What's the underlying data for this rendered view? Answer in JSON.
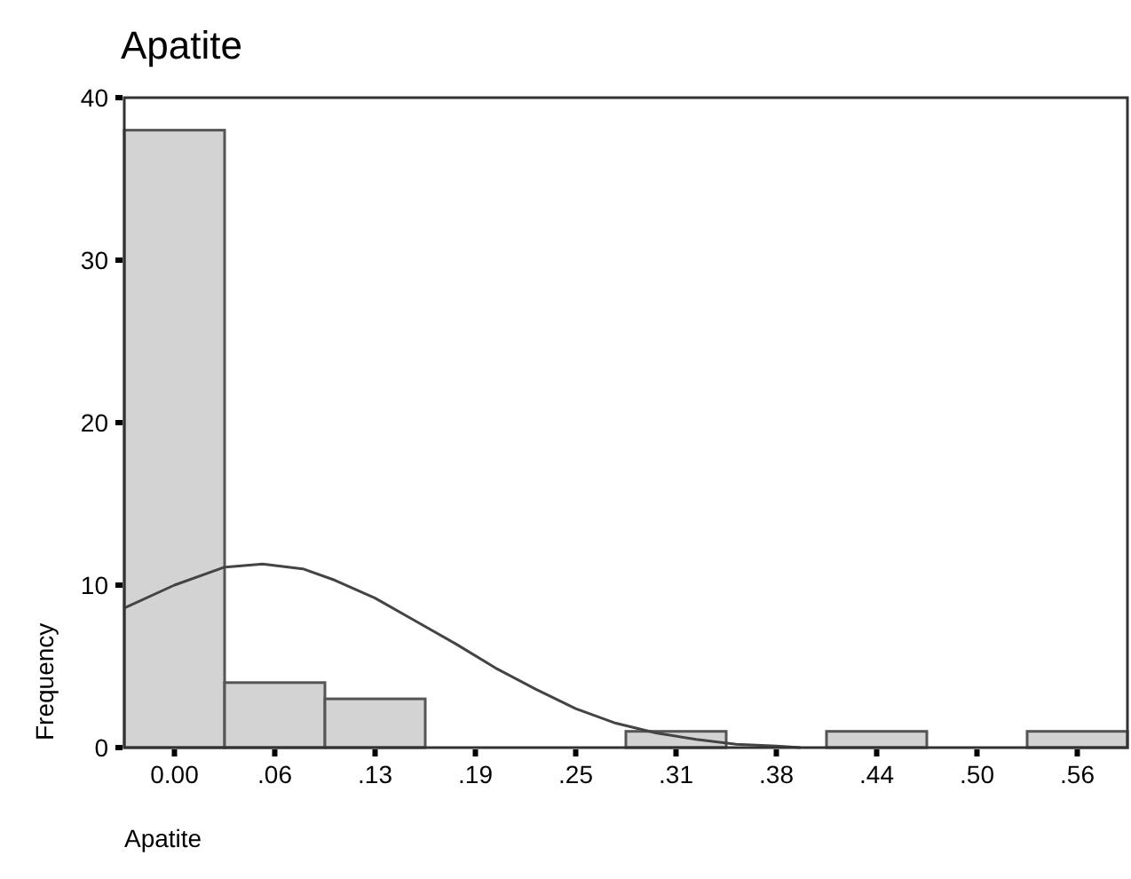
{
  "chart_data": {
    "type": "histogram",
    "title": "Apatite",
    "xlabel": "Apatite",
    "ylabel": "Frequency",
    "bins": [
      -0.03125,
      0.03125,
      0.09375,
      0.15625,
      0.21875,
      0.28125,
      0.34375,
      0.40625,
      0.46875,
      0.53125,
      0.59375
    ],
    "values": [
      38,
      4,
      3,
      0,
      0,
      1,
      0,
      1,
      0,
      1
    ],
    "color": "#d3d3d3",
    "series": [
      {
        "type": "line",
        "color": "#444444",
        "x": [
          -0.031,
          0,
          0.031,
          0.055,
          0.08,
          0.1,
          0.125,
          0.15,
          0.175,
          0.2,
          0.225,
          0.25,
          0.275,
          0.3,
          0.325,
          0.35,
          0.375,
          0.39
        ],
        "values": [
          8.6,
          10.0,
          11.1,
          11.3,
          11.0,
          10.3,
          9.2,
          7.8,
          6.4,
          4.9,
          3.6,
          2.4,
          1.5,
          0.9,
          0.5,
          0.2,
          0.1,
          0
        ]
      }
    ],
    "xlim": [
      -0.03125,
      0.59375
    ],
    "ylim": [
      0,
      40
    ],
    "xticks": [
      {
        "value": 0,
        "label": "0.00"
      },
      {
        "value": 0.0625,
        "label": ".06"
      },
      {
        "value": 0.125,
        "label": ".13"
      },
      {
        "value": 0.1875,
        "label": ".19"
      },
      {
        "value": 0.25,
        "label": ".25"
      },
      {
        "value": 0.3125,
        "label": ".31"
      },
      {
        "value": 0.375,
        "label": ".38"
      },
      {
        "value": 0.4375,
        "label": ".44"
      },
      {
        "value": 0.5,
        "label": ".50"
      },
      {
        "value": 0.5625,
        "label": ".56"
      }
    ],
    "yticks": [
      0,
      10,
      20,
      30,
      40
    ],
    "grid": false
  }
}
